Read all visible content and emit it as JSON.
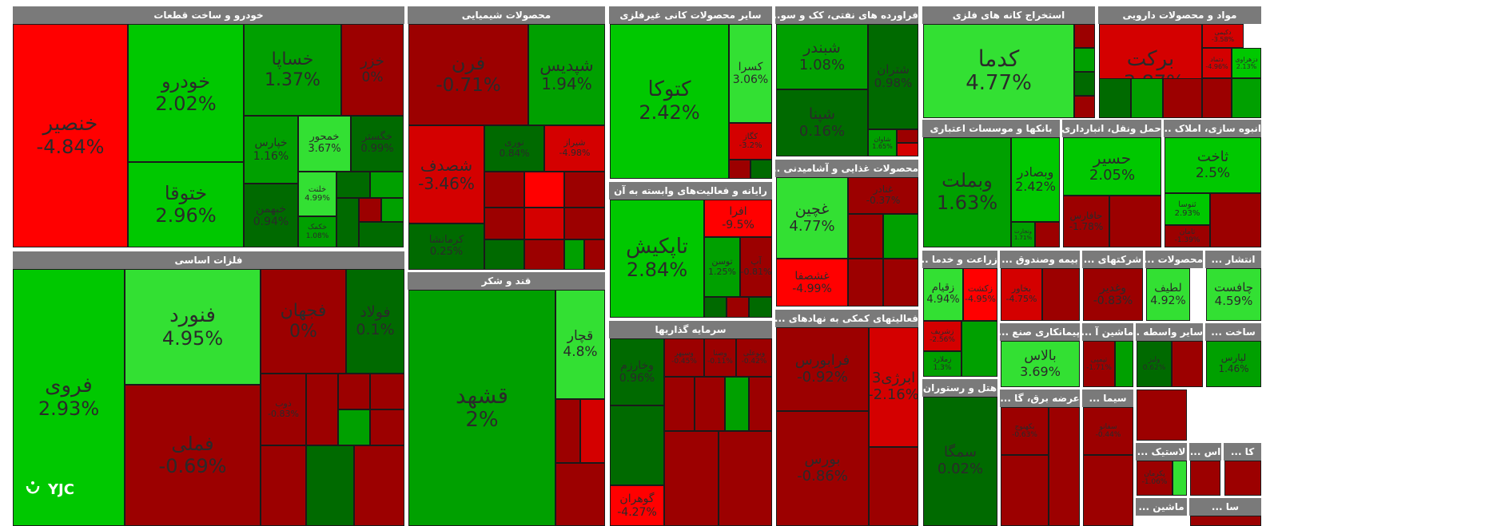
{
  "colors": {
    "bright_green": "#33e033",
    "green": "#00c800",
    "mid_green": "#00a000",
    "dark_green": "#006a00",
    "bright_red": "#ff0000",
    "red": "#d40000",
    "dark_red": "#9c0000",
    "title_bar": "#7a7a7a"
  },
  "logo": {
    "text": "YJC"
  },
  "sectors": [
    {
      "title": "خودرو و ساخت قطعات",
      "tiles": [
        {
          "name": "خنصیر",
          "pct": "-4.84%",
          "color": "bright_red"
        },
        {
          "name": "خودرو",
          "pct": "2.02%",
          "color": "green"
        },
        {
          "name": "خساپا",
          "pct": "1.37%",
          "color": "mid_green"
        },
        {
          "name": "خزر",
          "pct": "0%",
          "color": "dark_red"
        },
        {
          "name": "ختوقا",
          "pct": "2.96%",
          "color": "green"
        },
        {
          "name": "خپارس",
          "pct": "1.16%",
          "color": "mid_green"
        },
        {
          "name": "خمحور",
          "pct": "3.67%",
          "color": "bright_green"
        },
        {
          "name": "خگستر",
          "pct": "0.99%",
          "color": "dark_green"
        },
        {
          "name": "خبهمن",
          "pct": "0.94%",
          "color": "dark_green"
        },
        {
          "name": "خلنت",
          "pct": "4.99%",
          "color": "bright_green"
        },
        {
          "name": "خکمک",
          "pct": "1.08%",
          "color": "mid_green"
        }
      ]
    },
    {
      "title": "محصولات شیمیایی",
      "tiles": [
        {
          "name": "فرن",
          "pct": "-0.71%",
          "color": "dark_red"
        },
        {
          "name": "شپدیس",
          "pct": "1.94%",
          "color": "mid_green"
        },
        {
          "name": "شصدف",
          "pct": "-3.46%",
          "color": "red"
        },
        {
          "name": "نوری",
          "pct": "0.84%",
          "color": "dark_green"
        },
        {
          "name": "شیراز",
          "pct": "-4.98%",
          "color": "red"
        },
        {
          "name": "کرمانشا",
          "pct": "0.25%",
          "color": "dark_green"
        }
      ]
    },
    {
      "title": "سایر محصولات کانی غیرفلزی",
      "tiles": [
        {
          "name": "کتوکا",
          "pct": "2.42%",
          "color": "green"
        },
        {
          "name": "کسرا",
          "pct": "3.06%",
          "color": "bright_green"
        },
        {
          "name": "کگاز",
          "pct": "-3.2%",
          "color": "red"
        }
      ]
    },
    {
      "title": "فراورده های نفتی، کک و سو...",
      "tiles": [
        {
          "name": "شبندر",
          "pct": "1.08%",
          "color": "mid_green"
        },
        {
          "name": "شتران",
          "pct": "0.98%",
          "color": "dark_green"
        },
        {
          "name": "شپنا",
          "pct": "0.16%",
          "color": "dark_green"
        },
        {
          "name": "شاوان",
          "pct": "1.65%",
          "color": "mid_green"
        }
      ]
    },
    {
      "title": "استخراج کانه های فلزی",
      "tiles": [
        {
          "name": "کدما",
          "pct": "4.77%",
          "color": "bright_green"
        }
      ]
    },
    {
      "title": "مواد و محصولات دارویی",
      "tiles": [
        {
          "name": "برکت",
          "pct": "-3.87%",
          "color": "red"
        },
        {
          "name": "دکیمی",
          "pct": "-3.58%",
          "color": "red"
        },
        {
          "name": "دتماد",
          "pct": "-4.96%",
          "color": "red"
        },
        {
          "name": "دزهراوی",
          "pct": "2.13%",
          "color": "green"
        }
      ]
    },
    {
      "title": "فلزات اساسی",
      "tiles": [
        {
          "name": "فروی",
          "pct": "2.93%",
          "color": "green"
        },
        {
          "name": "فنورد",
          "pct": "4.95%",
          "color": "bright_green"
        },
        {
          "name": "فجهان",
          "pct": "0%",
          "color": "dark_red"
        },
        {
          "name": "فولاد",
          "pct": "0.1%",
          "color": "dark_green"
        },
        {
          "name": "فملی",
          "pct": "-0.69%",
          "color": "dark_red"
        },
        {
          "name": "ذوب",
          "pct": "-0.83%",
          "color": "dark_red"
        }
      ]
    },
    {
      "title": "قند و شکر",
      "tiles": [
        {
          "name": "قشهد",
          "pct": "2%",
          "color": "mid_green"
        },
        {
          "name": "قچار",
          "pct": "4.8%",
          "color": "bright_green"
        }
      ]
    },
    {
      "title": "رایانه و فعالیت‌های وابسته به آن",
      "tiles": [
        {
          "name": "تاپکیش",
          "pct": "2.84%",
          "color": "green"
        },
        {
          "name": "افرا",
          "pct": "-9.5%",
          "color": "bright_red"
        },
        {
          "name": "توسن",
          "pct": "1.25%",
          "color": "mid_green"
        },
        {
          "name": "آپ",
          "pct": "-0.81%",
          "color": "dark_red"
        }
      ]
    },
    {
      "title": "سرمایه گذاریها",
      "tiles": [
        {
          "name": "وخارزم",
          "pct": "0.96%",
          "color": "dark_green"
        },
        {
          "name": "وسپهر",
          "pct": "-0.45%",
          "color": "dark_red"
        },
        {
          "name": "وصنا",
          "pct": "-0.11%",
          "color": "dark_red"
        },
        {
          "name": "وبوعلی",
          "pct": "-0.42%",
          "color": "dark_red"
        },
        {
          "name": "گوهران",
          "pct": "-4.27%",
          "color": "bright_red"
        }
      ]
    },
    {
      "title": "محصولات غذایی و آشامیدنی ...",
      "tiles": [
        {
          "name": "غچین",
          "pct": "4.77%",
          "color": "bright_green"
        },
        {
          "name": "غنادر",
          "pct": "-0.37%",
          "color": "dark_red"
        },
        {
          "name": "غشصفا",
          "pct": "-4.99%",
          "color": "bright_red"
        }
      ]
    },
    {
      "title": "فعالیتهای کمکی به نهادهای ...",
      "tiles": [
        {
          "name": "فرابورس",
          "pct": "-0.92%",
          "color": "dark_red"
        },
        {
          "name": "ابرژی3",
          "pct": "-2.16%",
          "color": "red"
        },
        {
          "name": "بورس",
          "pct": "-0.86%",
          "color": "dark_red"
        }
      ]
    },
    {
      "title": "بانکها و موسسات اعتباری",
      "tiles": [
        {
          "name": "وبملت",
          "pct": "1.63%",
          "color": "mid_green"
        },
        {
          "name": "وبصادر",
          "pct": "2.42%",
          "color": "green"
        },
        {
          "name": "وتجارت",
          "pct": "1.71%",
          "color": "mid_green"
        }
      ]
    },
    {
      "title": "حمل ونقل، انبارداری ...",
      "tiles": [
        {
          "name": "حسیر",
          "pct": "2.05%",
          "color": "green"
        },
        {
          "name": "حافارس",
          "pct": "-1.78%",
          "color": "dark_red"
        }
      ]
    },
    {
      "title": "انبوه سازی، املاک ...",
      "tiles": [
        {
          "name": "ثاخت",
          "pct": "2.5%",
          "color": "green"
        },
        {
          "name": "ثنوسا",
          "pct": "2.93%",
          "color": "green"
        },
        {
          "name": "ثامان",
          "pct": "-1.39%",
          "color": "dark_red"
        }
      ]
    },
    {
      "title": "زراعت و خدما ...",
      "tiles": [
        {
          "name": "زقیام",
          "pct": "4.94%",
          "color": "bright_green"
        },
        {
          "name": "زکشت",
          "pct": "-4.95%",
          "color": "bright_red"
        },
        {
          "name": "زشریف",
          "pct": "-2.56%",
          "color": "red"
        },
        {
          "name": "زملارد",
          "pct": "1.3%",
          "color": "mid_green"
        }
      ]
    },
    {
      "title": "بیمه وصندوق ...",
      "tiles": [
        {
          "name": "بخاور",
          "pct": "-4.75%",
          "color": "red"
        }
      ]
    },
    {
      "title": "شرکتهای ...",
      "tiles": [
        {
          "name": "وغدیر",
          "pct": "-0.83%",
          "color": "dark_red"
        }
      ]
    },
    {
      "title": "محصولات ...",
      "tiles": [
        {
          "name": "لطیف",
          "pct": "4.92%",
          "color": "bright_green"
        }
      ]
    },
    {
      "title": "انتشار ...",
      "tiles": [
        {
          "name": "چافست",
          "pct": "4.59%",
          "color": "bright_green"
        }
      ]
    },
    {
      "title": "پیمانکاری صنع ...",
      "tiles": [
        {
          "name": "بالاس",
          "pct": "3.69%",
          "color": "bright_green"
        }
      ]
    },
    {
      "title": "ماشین آ ...",
      "tiles": [
        {
          "name": "تپمپی",
          "pct": "-1.71%",
          "color": "dark_red"
        }
      ]
    },
    {
      "title": "سایر واسطه ...",
      "tiles": [
        {
          "name": "ولیز",
          "pct": "0.62%",
          "color": "dark_green"
        }
      ]
    },
    {
      "title": "ساخت ...",
      "tiles": [
        {
          "name": "لپارس",
          "pct": "1.46%",
          "color": "mid_green"
        }
      ]
    },
    {
      "title": "هتل و رستوران",
      "tiles": [
        {
          "name": "سمگا",
          "pct": "0.02%",
          "color": "dark_green"
        }
      ]
    },
    {
      "title": "عرضه برق، گا ...",
      "tiles": [
        {
          "name": "بکهنوج",
          "pct": "-0.63%",
          "color": "dark_red"
        }
      ]
    },
    {
      "title": "سیما ...",
      "tiles": [
        {
          "name": "سفانو",
          "pct": "-0.44%",
          "color": "dark_red"
        }
      ]
    },
    {
      "title": "لاستیک ...",
      "tiles": [
        {
          "name": "پکرمان",
          "pct": "-1.06%",
          "color": "dark_red"
        }
      ]
    },
    {
      "title": "ماشین ...",
      "tiles": []
    },
    {
      "title": "اس ...",
      "tiles": []
    },
    {
      "title": "کا ...",
      "tiles": []
    },
    {
      "title": "سا ...",
      "tiles": []
    }
  ]
}
